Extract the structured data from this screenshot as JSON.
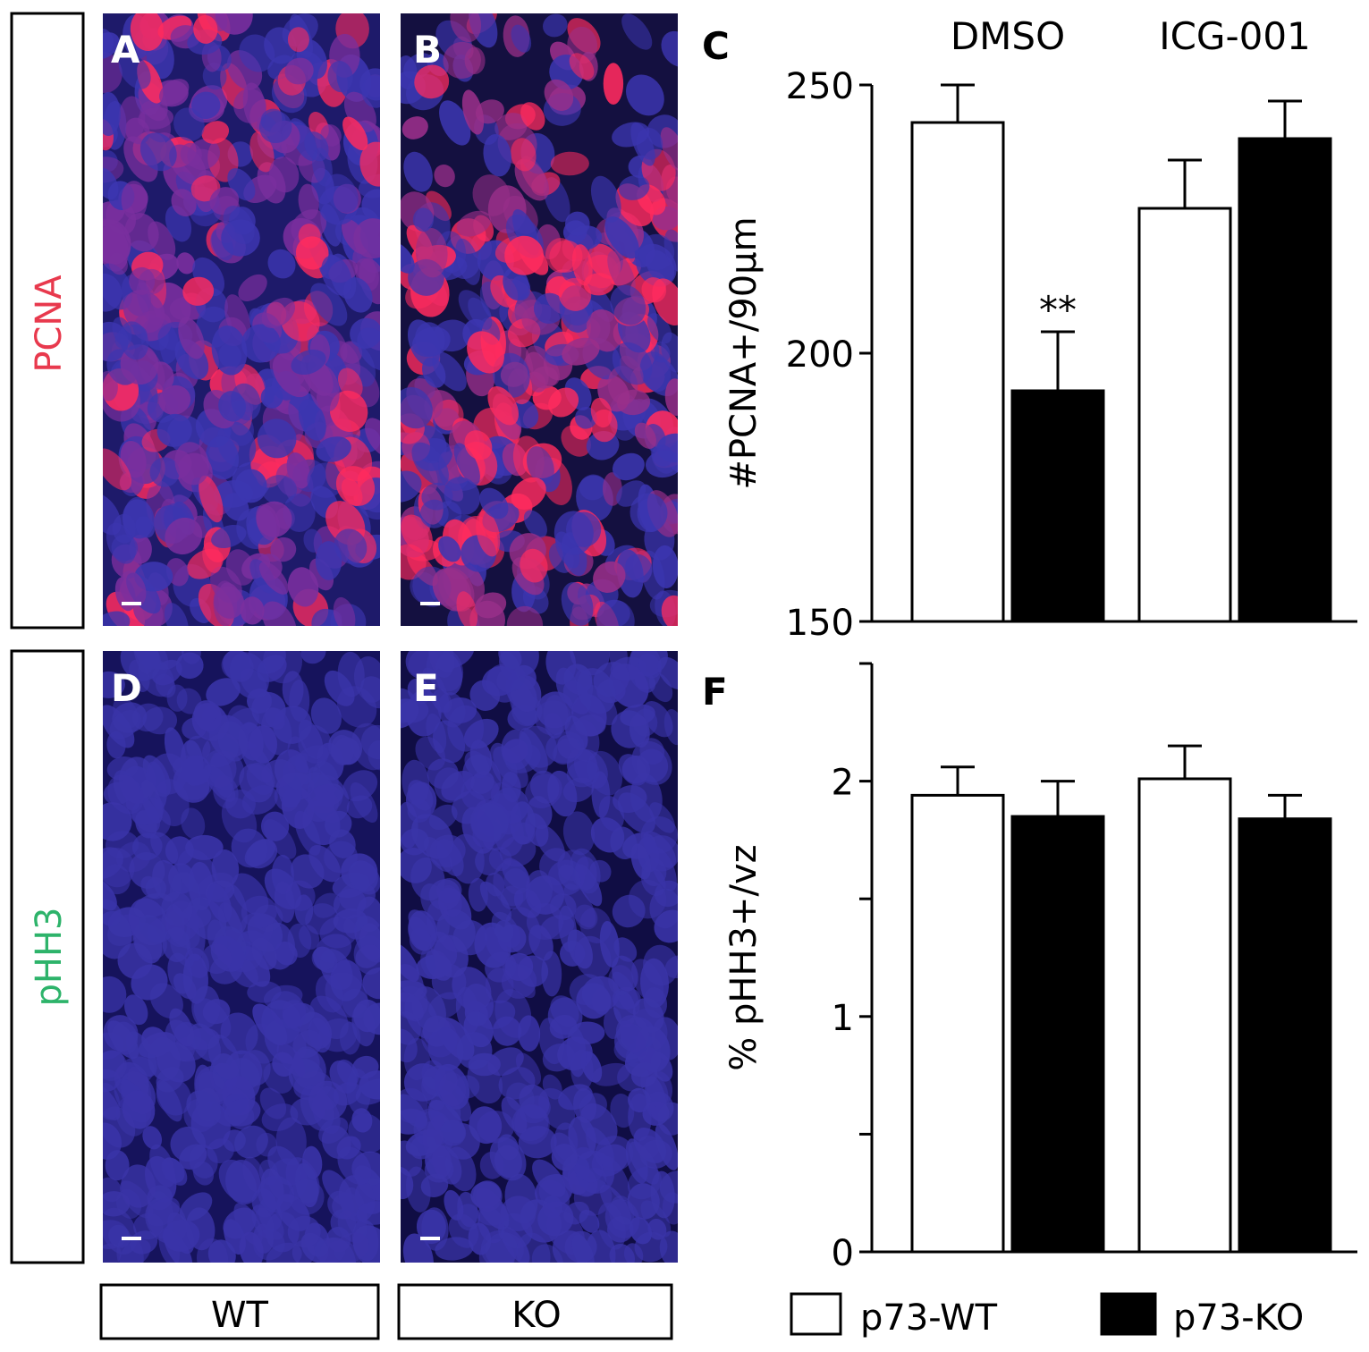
{
  "figure": {
    "rows": [
      {
        "label": "PCNA",
        "label_color": "#e8394d",
        "panels": [
          "A",
          "B"
        ],
        "stain": "red"
      },
      {
        "label": "pHH3",
        "label_color": "#2db36a",
        "panels": [
          "D",
          "E"
        ],
        "stain": "green"
      }
    ],
    "columns": [
      "WT",
      "KO"
    ],
    "chart_letters": [
      "C",
      "F"
    ]
  },
  "chart_data": [
    {
      "type": "bar",
      "panel": "C",
      "group_labels": [
        "DMSO",
        "ICG-001"
      ],
      "ylabel": "#PCNA+/90µm",
      "ylim": [
        150,
        250
      ],
      "yticks": [
        150,
        200,
        250
      ],
      "grid": false,
      "series": [
        {
          "name": "p73-WT",
          "fill": "#ffffff",
          "values": [
            243,
            227
          ],
          "errors": [
            7,
            9
          ]
        },
        {
          "name": "p73-KO",
          "fill": "#000000",
          "values": [
            193,
            240
          ],
          "errors": [
            11,
            7
          ]
        }
      ],
      "annotations": [
        {
          "text": "**",
          "group": 0,
          "series": 1
        }
      ]
    },
    {
      "type": "bar",
      "panel": "F",
      "group_labels": [],
      "ylabel": "% pHH3+/vz",
      "ylim": [
        0,
        2.5
      ],
      "yticks": [
        0,
        0.5,
        1,
        1.5,
        2,
        2.5
      ],
      "ytick_labels": [
        "0",
        "",
        "1",
        "",
        "2",
        ""
      ],
      "grid": false,
      "series": [
        {
          "name": "p73-WT",
          "fill": "#ffffff",
          "values": [
            1.94,
            2.01
          ],
          "errors": [
            0.12,
            0.14
          ]
        },
        {
          "name": "p73-KO",
          "fill": "#000000",
          "values": [
            1.85,
            1.84
          ],
          "errors": [
            0.15,
            0.1
          ]
        }
      ]
    }
  ],
  "legend": {
    "position": "bottom",
    "items": [
      {
        "name": "p73-WT",
        "fill": "#ffffff"
      },
      {
        "name": "p73-KO",
        "fill": "#000000"
      }
    ]
  }
}
